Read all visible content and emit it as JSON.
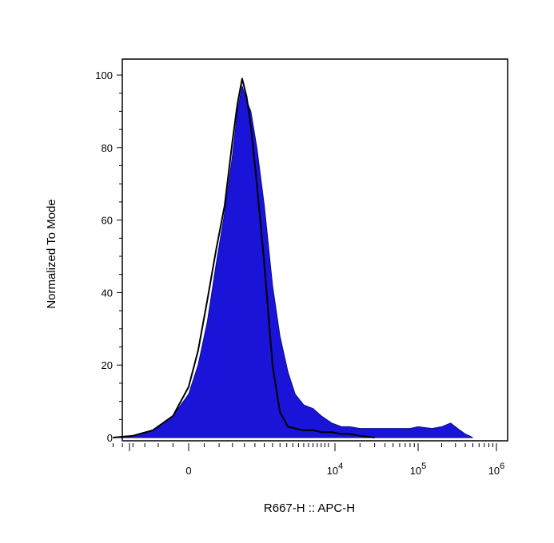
{
  "chart_data": {
    "type": "area",
    "title": "",
    "xlabel": "R667-H :: APC-H",
    "ylabel": "Normalized To Mode",
    "ylim": [
      0,
      100
    ],
    "x_scale": "biexponential",
    "grid": false,
    "legend": "none",
    "y_ticks": [
      "0",
      "20",
      "40",
      "60",
      "80",
      "100"
    ],
    "x_ticks": [
      {
        "base": "0",
        "exp": ""
      },
      {
        "base": "10",
        "exp": "4"
      },
      {
        "base": "10",
        "exp": "5"
      },
      {
        "base": "10",
        "exp": "6"
      }
    ],
    "series": [
      {
        "style": "filled",
        "color": "#1a14d8",
        "outline": "#0a0a8a",
        "points": [
          [
            -3000,
            0
          ],
          [
            -2000,
            0.5
          ],
          [
            -1200,
            2
          ],
          [
            -500,
            6
          ],
          [
            0,
            12
          ],
          [
            300,
            20
          ],
          [
            600,
            32
          ],
          [
            900,
            48
          ],
          [
            1200,
            62
          ],
          [
            1500,
            78
          ],
          [
            1700,
            90
          ],
          [
            1900,
            97
          ],
          [
            2100,
            93
          ],
          [
            2300,
            90
          ],
          [
            2600,
            80
          ],
          [
            3000,
            64
          ],
          [
            3500,
            42
          ],
          [
            4000,
            28
          ],
          [
            4600,
            18
          ],
          [
            5200,
            12
          ],
          [
            6000,
            9
          ],
          [
            7000,
            8
          ],
          [
            8000,
            6
          ],
          [
            9500,
            4
          ],
          [
            12000,
            3
          ],
          [
            15000,
            3
          ],
          [
            20000,
            2.5
          ],
          [
            30000,
            2.5
          ],
          [
            50000,
            2.5
          ],
          [
            80000,
            2.5
          ],
          [
            100000,
            3
          ],
          [
            150000,
            2.5
          ],
          [
            200000,
            3
          ],
          [
            260000,
            4
          ],
          [
            320000,
            2.5
          ],
          [
            400000,
            1
          ],
          [
            500000,
            0
          ]
        ]
      },
      {
        "style": "line",
        "color": "#000000",
        "points": [
          [
            -3000,
            0
          ],
          [
            -2000,
            0.5
          ],
          [
            -1200,
            2
          ],
          [
            -500,
            6
          ],
          [
            0,
            14
          ],
          [
            300,
            24
          ],
          [
            600,
            38
          ],
          [
            900,
            52
          ],
          [
            1200,
            64
          ],
          [
            1500,
            82
          ],
          [
            1700,
            92
          ],
          [
            1900,
            99
          ],
          [
            2100,
            94
          ],
          [
            2300,
            86
          ],
          [
            2600,
            70
          ],
          [
            3000,
            48
          ],
          [
            3500,
            20
          ],
          [
            4000,
            7
          ],
          [
            4600,
            3
          ],
          [
            5200,
            2.5
          ],
          [
            6000,
            2
          ],
          [
            7000,
            2
          ],
          [
            8000,
            1.5
          ],
          [
            9500,
            1.5
          ],
          [
            12000,
            1
          ],
          [
            15000,
            1
          ],
          [
            20000,
            0.5
          ],
          [
            30000,
            0
          ]
        ]
      }
    ]
  }
}
